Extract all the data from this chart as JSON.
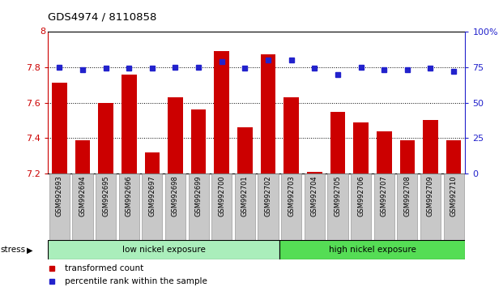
{
  "title": "GDS4974 / 8110858",
  "samples": [
    "GSM992693",
    "GSM992694",
    "GSM992695",
    "GSM992696",
    "GSM992697",
    "GSM992698",
    "GSM992699",
    "GSM992700",
    "GSM992701",
    "GSM992702",
    "GSM992703",
    "GSM992704",
    "GSM992705",
    "GSM992706",
    "GSM992707",
    "GSM992708",
    "GSM992709",
    "GSM992710"
  ],
  "bar_values": [
    7.71,
    7.39,
    7.6,
    7.76,
    7.32,
    7.63,
    7.56,
    7.89,
    7.46,
    7.87,
    7.63,
    7.21,
    7.55,
    7.49,
    7.44,
    7.39,
    7.5,
    7.39
  ],
  "blue_dot_values": [
    75,
    73,
    74,
    74,
    74,
    75,
    75,
    79,
    74,
    80,
    80,
    74,
    70,
    75,
    73,
    73,
    74,
    72
  ],
  "bar_color": "#cc0000",
  "dot_color": "#2222cc",
  "ylim_left": [
    7.2,
    8.0
  ],
  "ylim_right": [
    0,
    100
  ],
  "yticks_left": [
    7.2,
    7.4,
    7.6,
    7.8
  ],
  "ytick_labels_left": [
    "7.2",
    "7.4",
    "7.6",
    "7.8"
  ],
  "yticks_right": [
    0,
    25,
    50,
    75,
    100
  ],
  "ytick_labels_right": [
    "0",
    "25",
    "50",
    "75",
    "100%"
  ],
  "group1_label": "low nickel exposure",
  "group2_label": "high nickel exposure",
  "group1_count": 10,
  "group2_count": 8,
  "stress_label": "stress",
  "legend1": "transformed count",
  "legend2": "percentile rank within the sample",
  "bar_width": 0.65,
  "group1_color": "#aaeebb",
  "group2_color": "#55dd55",
  "xticklabel_bg": "#c8c8c8"
}
